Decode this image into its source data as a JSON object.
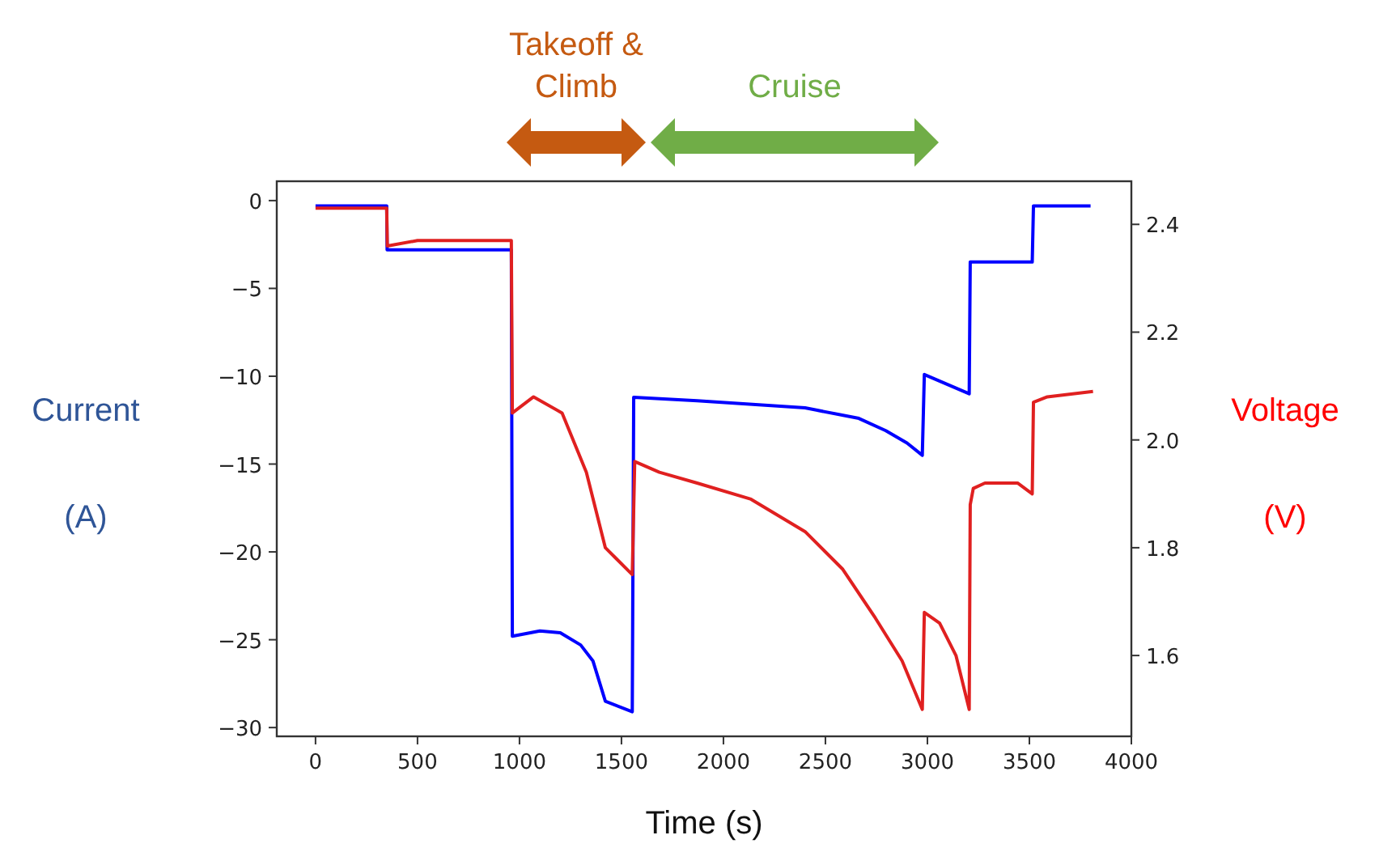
{
  "chart_data": {
    "type": "line",
    "xlabel": "Time (s)",
    "ylabel": "Current (A)",
    "y2label": "Voltage (V)",
    "xlim": [
      -190,
      4000
    ],
    "xticks": [
      0,
      500,
      1000,
      1500,
      2000,
      2500,
      3000,
      3500,
      4000
    ],
    "ylim": [
      -30.5,
      1.1
    ],
    "yticks": [
      {
        "value": 0,
        "label": "0"
      },
      {
        "value": -5,
        "label": "−5"
      },
      {
        "value": -10,
        "label": "−10"
      },
      {
        "value": -15,
        "label": "−15"
      },
      {
        "value": -20,
        "label": "−20"
      },
      {
        "value": -25,
        "label": "−25"
      },
      {
        "value": -30,
        "label": "−30"
      }
    ],
    "y2lim": [
      1.45,
      2.48
    ],
    "y2ticks": [
      1.6,
      1.8,
      {
        "value": 2,
        "label": "2.0"
      },
      2.2,
      2.4
    ],
    "grid": false,
    "annotations": [
      "Takeoff & Climb",
      "Cruise"
    ],
    "series": [
      {
        "color": "#0000ff",
        "x": [
          0,
          349,
          351,
          960,
          965,
          1100,
          1200,
          1300,
          1360,
          1421,
          1553,
          1560,
          1871,
          2400,
          2664,
          2796,
          2900,
          2975,
          2985,
          3205,
          3210,
          3514,
          3520,
          3800
        ],
        "values": [
          -0.3,
          -0.3,
          -2.8,
          -2.8,
          -24.8,
          -24.5,
          -24.6,
          -25.3,
          -26.2,
          -28.5,
          -29.1,
          -11.2,
          -11.4,
          -11.8,
          -12.4,
          -13.1,
          -13.8,
          -14.5,
          -9.9,
          -11.0,
          -3.5,
          -3.5,
          -0.3,
          -0.3
        ]
      },
      {
        "color": "#e02020",
        "axis": "y2",
        "x": [
          0,
          349,
          352,
          500,
          950,
          960,
          965,
          1069,
          1209,
          1328,
          1421,
          1474,
          1553,
          1565,
          1686,
          1871,
          2135,
          2400,
          2585,
          2744,
          2876,
          2975,
          2985,
          3060,
          3140,
          3205,
          3210,
          3225,
          3282,
          3442,
          3514,
          3520,
          3588,
          3812
        ],
        "values": [
          2.43,
          2.43,
          2.36,
          2.37,
          2.37,
          2.37,
          2.05,
          2.08,
          2.05,
          1.94,
          1.8,
          1.78,
          1.75,
          1.96,
          1.94,
          1.92,
          1.89,
          1.83,
          1.76,
          1.67,
          1.59,
          1.5,
          1.68,
          1.66,
          1.6,
          1.5,
          1.88,
          1.91,
          1.92,
          1.92,
          1.9,
          2.07,
          2.08,
          2.09
        ]
      }
    ]
  }
}
